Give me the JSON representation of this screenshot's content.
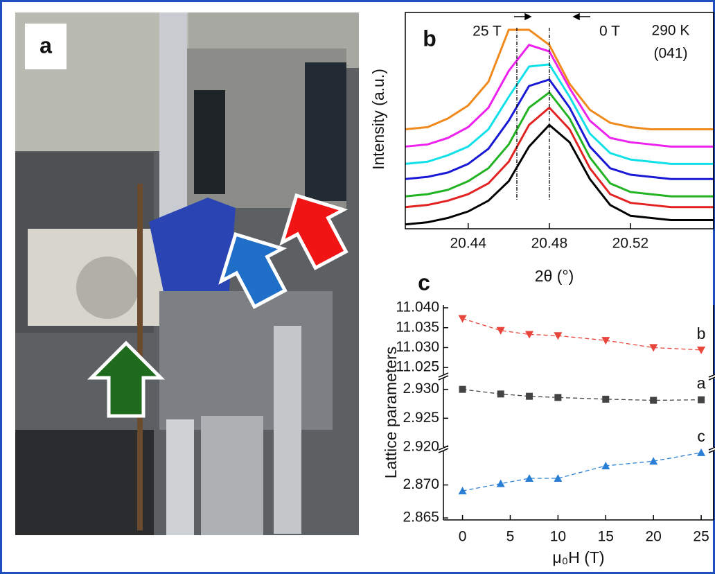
{
  "figure": {
    "panel_label": "a"
  },
  "chart_data": [
    {
      "type": "line",
      "panel_label": "b",
      "x_label": "2θ (°)",
      "y_label": "Intensity (a.u.)",
      "annotations": [
        "25 T",
        "0 T",
        "290 K",
        "(041)"
      ],
      "reference_lines": [
        20.464,
        20.48
      ],
      "x": [
        20.409,
        20.42,
        20.43,
        20.44,
        20.45,
        20.46,
        20.47,
        20.48,
        20.49,
        20.5,
        20.51,
        20.52,
        20.53,
        20.54,
        20.561
      ],
      "xlim": [
        20.409,
        20.561
      ],
      "xticks": [
        20.44,
        20.48,
        20.52
      ],
      "ylim": [
        0,
        100
      ],
      "series": [
        {
          "color": "#000000",
          "values": [
            2,
            3,
            5,
            8,
            13,
            22,
            38,
            48,
            40,
            23,
            11,
            6,
            5,
            4,
            4
          ]
        },
        {
          "color": "#e32222",
          "values": [
            10,
            11,
            13,
            16,
            21,
            31,
            48,
            56,
            46,
            28,
            16,
            12,
            11,
            10,
            10
          ]
        },
        {
          "color": "#22b322",
          "values": [
            15,
            16,
            18,
            22,
            28,
            39,
            56,
            63,
            51,
            33,
            21,
            17,
            16,
            15,
            15
          ]
        },
        {
          "color": "#1a1ad6",
          "values": [
            23,
            24,
            26,
            30,
            37,
            50,
            66,
            69,
            56,
            38,
            28,
            25,
            24,
            23,
            23
          ]
        },
        {
          "color": "#10e0e8",
          "values": [
            30,
            31,
            34,
            38,
            46,
            61,
            75,
            76,
            61,
            44,
            35,
            32,
            31,
            30,
            30
          ]
        },
        {
          "color": "#ee22ee",
          "values": [
            38,
            39,
            42,
            47,
            56,
            73,
            85,
            82,
            65,
            50,
            42,
            40,
            39,
            38,
            38
          ]
        },
        {
          "color": "#f08a1c",
          "values": [
            46,
            47,
            51,
            57,
            68,
            92,
            92,
            85,
            67,
            55,
            49,
            47,
            46,
            46,
            46
          ]
        }
      ]
    },
    {
      "type": "line",
      "panel_label": "c",
      "x_label": "μ₀H (T)",
      "y_label": "Lattice parameters",
      "x": [
        0,
        4,
        7,
        10,
        15,
        20,
        25
      ],
      "xlim": [
        -2,
        26.3
      ],
      "xticks": [
        0,
        5,
        10,
        15,
        20,
        25
      ],
      "panels": [
        {
          "ylim": [
            11.0231,
            11.0407
          ],
          "yticks": [
            {
              "value": 11.025,
              "label": "11.025"
            },
            {
              "value": 11.03,
              "label": "11.030"
            },
            {
              "value": 11.035,
              "label": "11.035"
            },
            {
              "value": 11.04,
              "label": "11.040"
            }
          ],
          "series": [
            {
              "name": "b",
              "color": "#e8453c",
              "marker": "triangle-down",
              "values": [
                11.0373,
                11.0343,
                11.0333,
                11.033,
                11.0318,
                11.03,
                11.0294
              ]
            }
          ]
        },
        {
          "ylim": [
            2.92,
            2.932
          ],
          "yticks": [
            {
              "value": 2.92,
              "label": "2.920"
            },
            {
              "value": 2.925,
              "label": "2.925"
            },
            {
              "value": 2.93,
              "label": "2.930"
            }
          ],
          "series": [
            {
              "name": "a",
              "color": "#444444",
              "marker": "square",
              "values": [
                2.93,
                2.9292,
                2.9288,
                2.9286,
                2.9283,
                2.9281,
                2.9282
              ]
            }
          ]
        },
        {
          "ylim": [
            2.8647,
            2.8751
          ],
          "yticks": [
            {
              "value": 2.865,
              "label": "2.865"
            },
            {
              "value": 2.87,
              "label": "2.870"
            }
          ],
          "series": [
            {
              "name": "c",
              "color": "#2a7fd4",
              "marker": "triangle-up",
              "values": [
                2.8691,
                2.8702,
                2.871,
                2.871,
                2.8729,
                2.8736,
                2.8749
              ]
            }
          ]
        }
      ]
    }
  ]
}
